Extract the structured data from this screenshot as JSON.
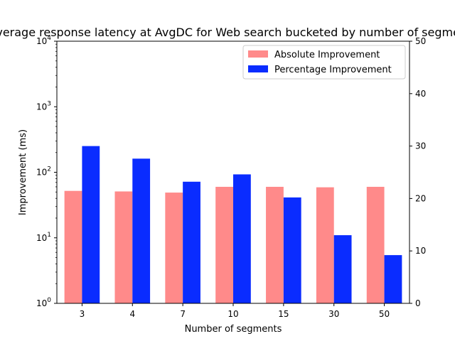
{
  "chart_data": {
    "type": "bar",
    "title": "Average response latency at AvgDC for Web search bucketed by number of segments",
    "xlabel": "Number of segments",
    "ylabel": "Improvement (ms)",
    "ylabel_right": "",
    "categories": [
      "3",
      "4",
      "7",
      "10",
      "15",
      "30",
      "50"
    ],
    "yscale": "log",
    "ylim": [
      1,
      10000
    ],
    "y2lim": [
      0,
      50
    ],
    "series": [
      {
        "name": "Absolute Improvement",
        "axis": "left",
        "color": "#ff8a8a",
        "values": [
          52,
          51,
          49,
          60,
          60,
          59,
          60
        ]
      },
      {
        "name": "Percentage Improvement",
        "axis": "right",
        "color": "#0a2cff",
        "values": [
          30.0,
          27.6,
          23.2,
          24.6,
          20.2,
          13.0,
          9.2
        ]
      }
    ],
    "left_ticks": [
      {
        "value": 1,
        "base": "10",
        "exp": "0"
      },
      {
        "value": 10,
        "base": "10",
        "exp": "1"
      },
      {
        "value": 100,
        "base": "10",
        "exp": "2"
      },
      {
        "value": 1000,
        "base": "10",
        "exp": "3"
      },
      {
        "value": 10000,
        "base": "10",
        "exp": "4"
      }
    ],
    "right_ticks": [
      0,
      10,
      20,
      30,
      40,
      50
    ],
    "legend_position": "top-right",
    "grid": false
  }
}
